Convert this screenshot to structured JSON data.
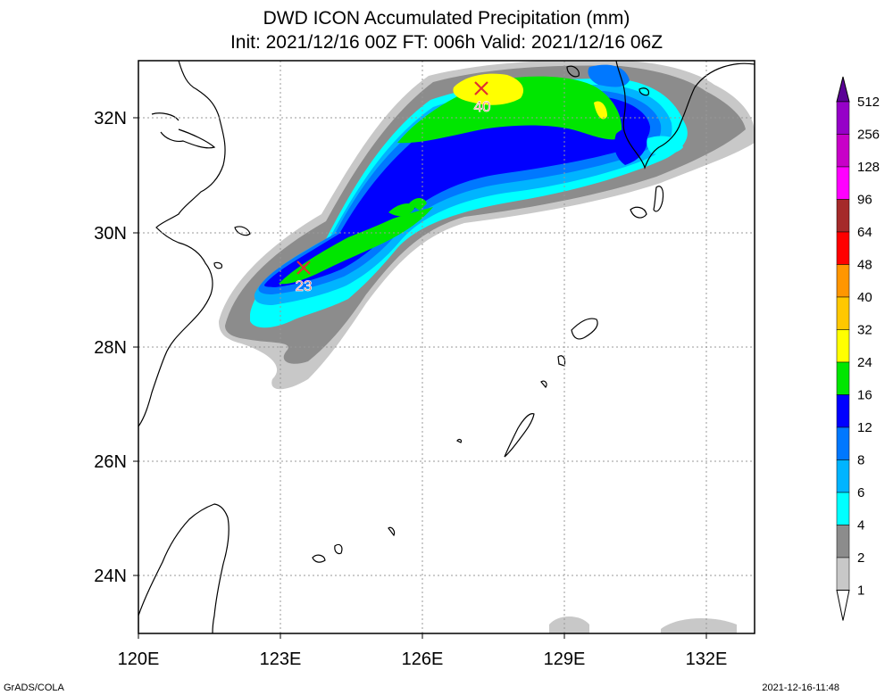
{
  "title": {
    "line1": "DWD ICON Accumulated Precipitation (mm)",
    "line2": "Init: 2021/12/16 00Z  FT: 006h  Valid: 2021/12/16 06Z"
  },
  "map": {
    "lon_labels": [
      "120E",
      "123E",
      "126E",
      "129E",
      "132E"
    ],
    "lat_labels": [
      "32N",
      "30N",
      "28N",
      "26N",
      "24N"
    ],
    "markers": [
      {
        "label": "40",
        "lon": 127.2,
        "lat": 32.55
      },
      {
        "label": "23",
        "lon": 123.5,
        "lat": 29.35
      }
    ]
  },
  "colorbar": {
    "levels": [
      "1",
      "2",
      "4",
      "6",
      "8",
      "12",
      "16",
      "24",
      "32",
      "40",
      "48",
      "64",
      "96",
      "128",
      "256",
      "512"
    ],
    "colors": {
      "c1": "#c8c8c8",
      "c2": "#8c8c8c",
      "c4": "#00ffff",
      "c6": "#00b4ff",
      "c8": "#0078ff",
      "c12": "#0000ff",
      "c16": "#00e600",
      "c24": "#ffff00",
      "c32": "#ffc800",
      "c40": "#ff9600",
      "c48": "#ff0000",
      "c64": "#a52a2a",
      "c96": "#ff00ff",
      "c128": "#c800c8",
      "c256": "#9600c8",
      "c512": "#5a0096"
    }
  },
  "footer": {
    "left": "GrADS/COLA",
    "right": "2021-12-16-11:48"
  }
}
